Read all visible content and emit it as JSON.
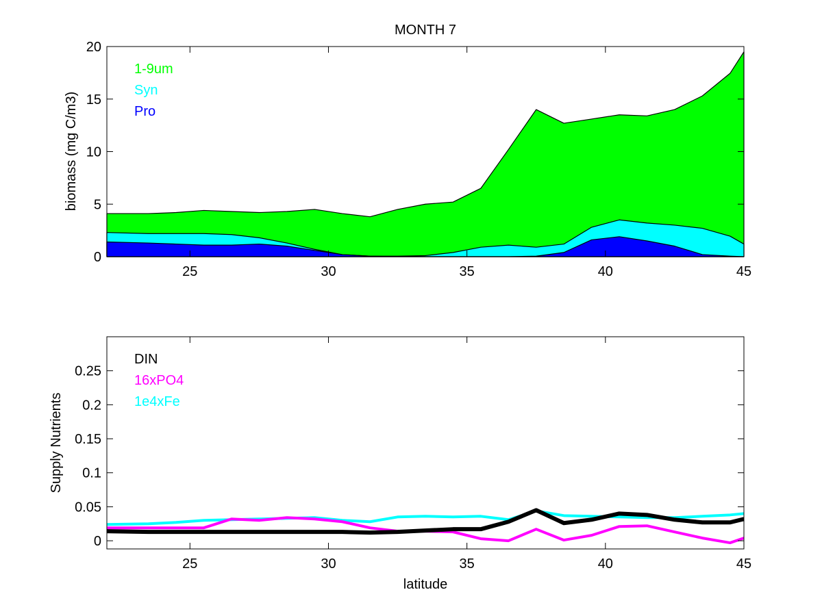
{
  "figure_title": "MONTH 7",
  "chart_data": [
    {
      "type": "area",
      "stacked": true,
      "title": "MONTH 7",
      "xlabel": "",
      "ylabel": "biomass (mg C/m3)",
      "xlim": [
        22,
        45
      ],
      "ylim": [
        0,
        20
      ],
      "xticks": [
        25,
        30,
        35,
        40,
        45
      ],
      "yticks": [
        0,
        5,
        10,
        15,
        20
      ],
      "grid": false,
      "legend_position": "top-left",
      "x": [
        22,
        23.5,
        24.5,
        25.5,
        26.5,
        27.5,
        28.5,
        29.5,
        30.5,
        31.5,
        32.5,
        33.5,
        34.5,
        35.5,
        36.5,
        37.5,
        38.5,
        39.5,
        40.5,
        41.5,
        42.5,
        43.5,
        44.5,
        45
      ],
      "series": [
        {
          "name": "Pro",
          "color": "#0000ff",
          "values": [
            1.4,
            1.3,
            1.2,
            1.1,
            1.1,
            1.2,
            1.0,
            0.6,
            0.2,
            0.05,
            0.0,
            0.0,
            0.0,
            0.0,
            0.0,
            0.05,
            0.4,
            1.6,
            1.9,
            1.5,
            1.0,
            0.2,
            0.05,
            0.0
          ]
        },
        {
          "name": "Syn",
          "color": "#00ffff",
          "values": [
            0.9,
            0.9,
            1.0,
            1.1,
            1.0,
            0.6,
            0.3,
            0.1,
            0.0,
            0.0,
            0.05,
            0.1,
            0.4,
            0.9,
            1.1,
            0.85,
            0.8,
            1.2,
            1.6,
            1.7,
            2.0,
            2.5,
            1.9,
            1.2
          ]
        },
        {
          "name": "1-9um",
          "color": "#00ff00",
          "values": [
            1.8,
            1.9,
            2.0,
            2.2,
            2.2,
            2.4,
            3.0,
            3.8,
            3.9,
            3.75,
            4.45,
            4.9,
            4.8,
            5.6,
            9.1,
            13.1,
            11.5,
            10.3,
            10.0,
            10.2,
            11.0,
            12.6,
            15.5,
            18.3
          ]
        }
      ]
    },
    {
      "type": "line",
      "title": "",
      "xlabel": "latitude",
      "ylabel": "Supply Nutrients",
      "xlim": [
        22,
        45
      ],
      "ylim": [
        -0.012,
        0.3
      ],
      "xticks": [
        25,
        30,
        35,
        40,
        45
      ],
      "yticks": [
        0,
        0.05,
        0.1,
        0.15,
        0.2,
        0.25
      ],
      "ytick_labels": [
        "0",
        "0.05",
        "0.1",
        "0.15",
        "0.2",
        "0.25"
      ],
      "grid": false,
      "legend_position": "top-left",
      "x": [
        22,
        23.5,
        24.5,
        25.5,
        26.5,
        27.5,
        28.5,
        29.5,
        30.5,
        31.5,
        32.5,
        33.5,
        34.5,
        35.5,
        36.5,
        37.5,
        38.5,
        39.5,
        40.5,
        41.5,
        42.5,
        43.5,
        44.5,
        45
      ],
      "series": [
        {
          "name": "1e4xFe",
          "color": "#00ffff",
          "values": [
            0.024,
            0.025,
            0.027,
            0.03,
            0.031,
            0.032,
            0.033,
            0.034,
            0.03,
            0.028,
            0.035,
            0.036,
            0.035,
            0.036,
            0.031,
            0.044,
            0.037,
            0.036,
            0.035,
            0.034,
            0.034,
            0.036,
            0.038,
            0.04
          ]
        },
        {
          "name": "16xPO4",
          "color": "#ff00ff",
          "values": [
            0.019,
            0.019,
            0.019,
            0.019,
            0.032,
            0.03,
            0.034,
            0.032,
            0.028,
            0.019,
            0.014,
            0.014,
            0.013,
            0.003,
            0.0,
            0.017,
            0.001,
            0.008,
            0.021,
            0.022,
            0.013,
            0.004,
            -0.003,
            0.004
          ]
        },
        {
          "name": "DIN",
          "color": "#000000",
          "values": [
            0.014,
            0.013,
            0.013,
            0.013,
            0.013,
            0.013,
            0.013,
            0.013,
            0.013,
            0.012,
            0.013,
            0.015,
            0.017,
            0.017,
            0.028,
            0.045,
            0.026,
            0.031,
            0.04,
            0.038,
            0.031,
            0.027,
            0.027,
            0.032
          ]
        }
      ]
    }
  ]
}
